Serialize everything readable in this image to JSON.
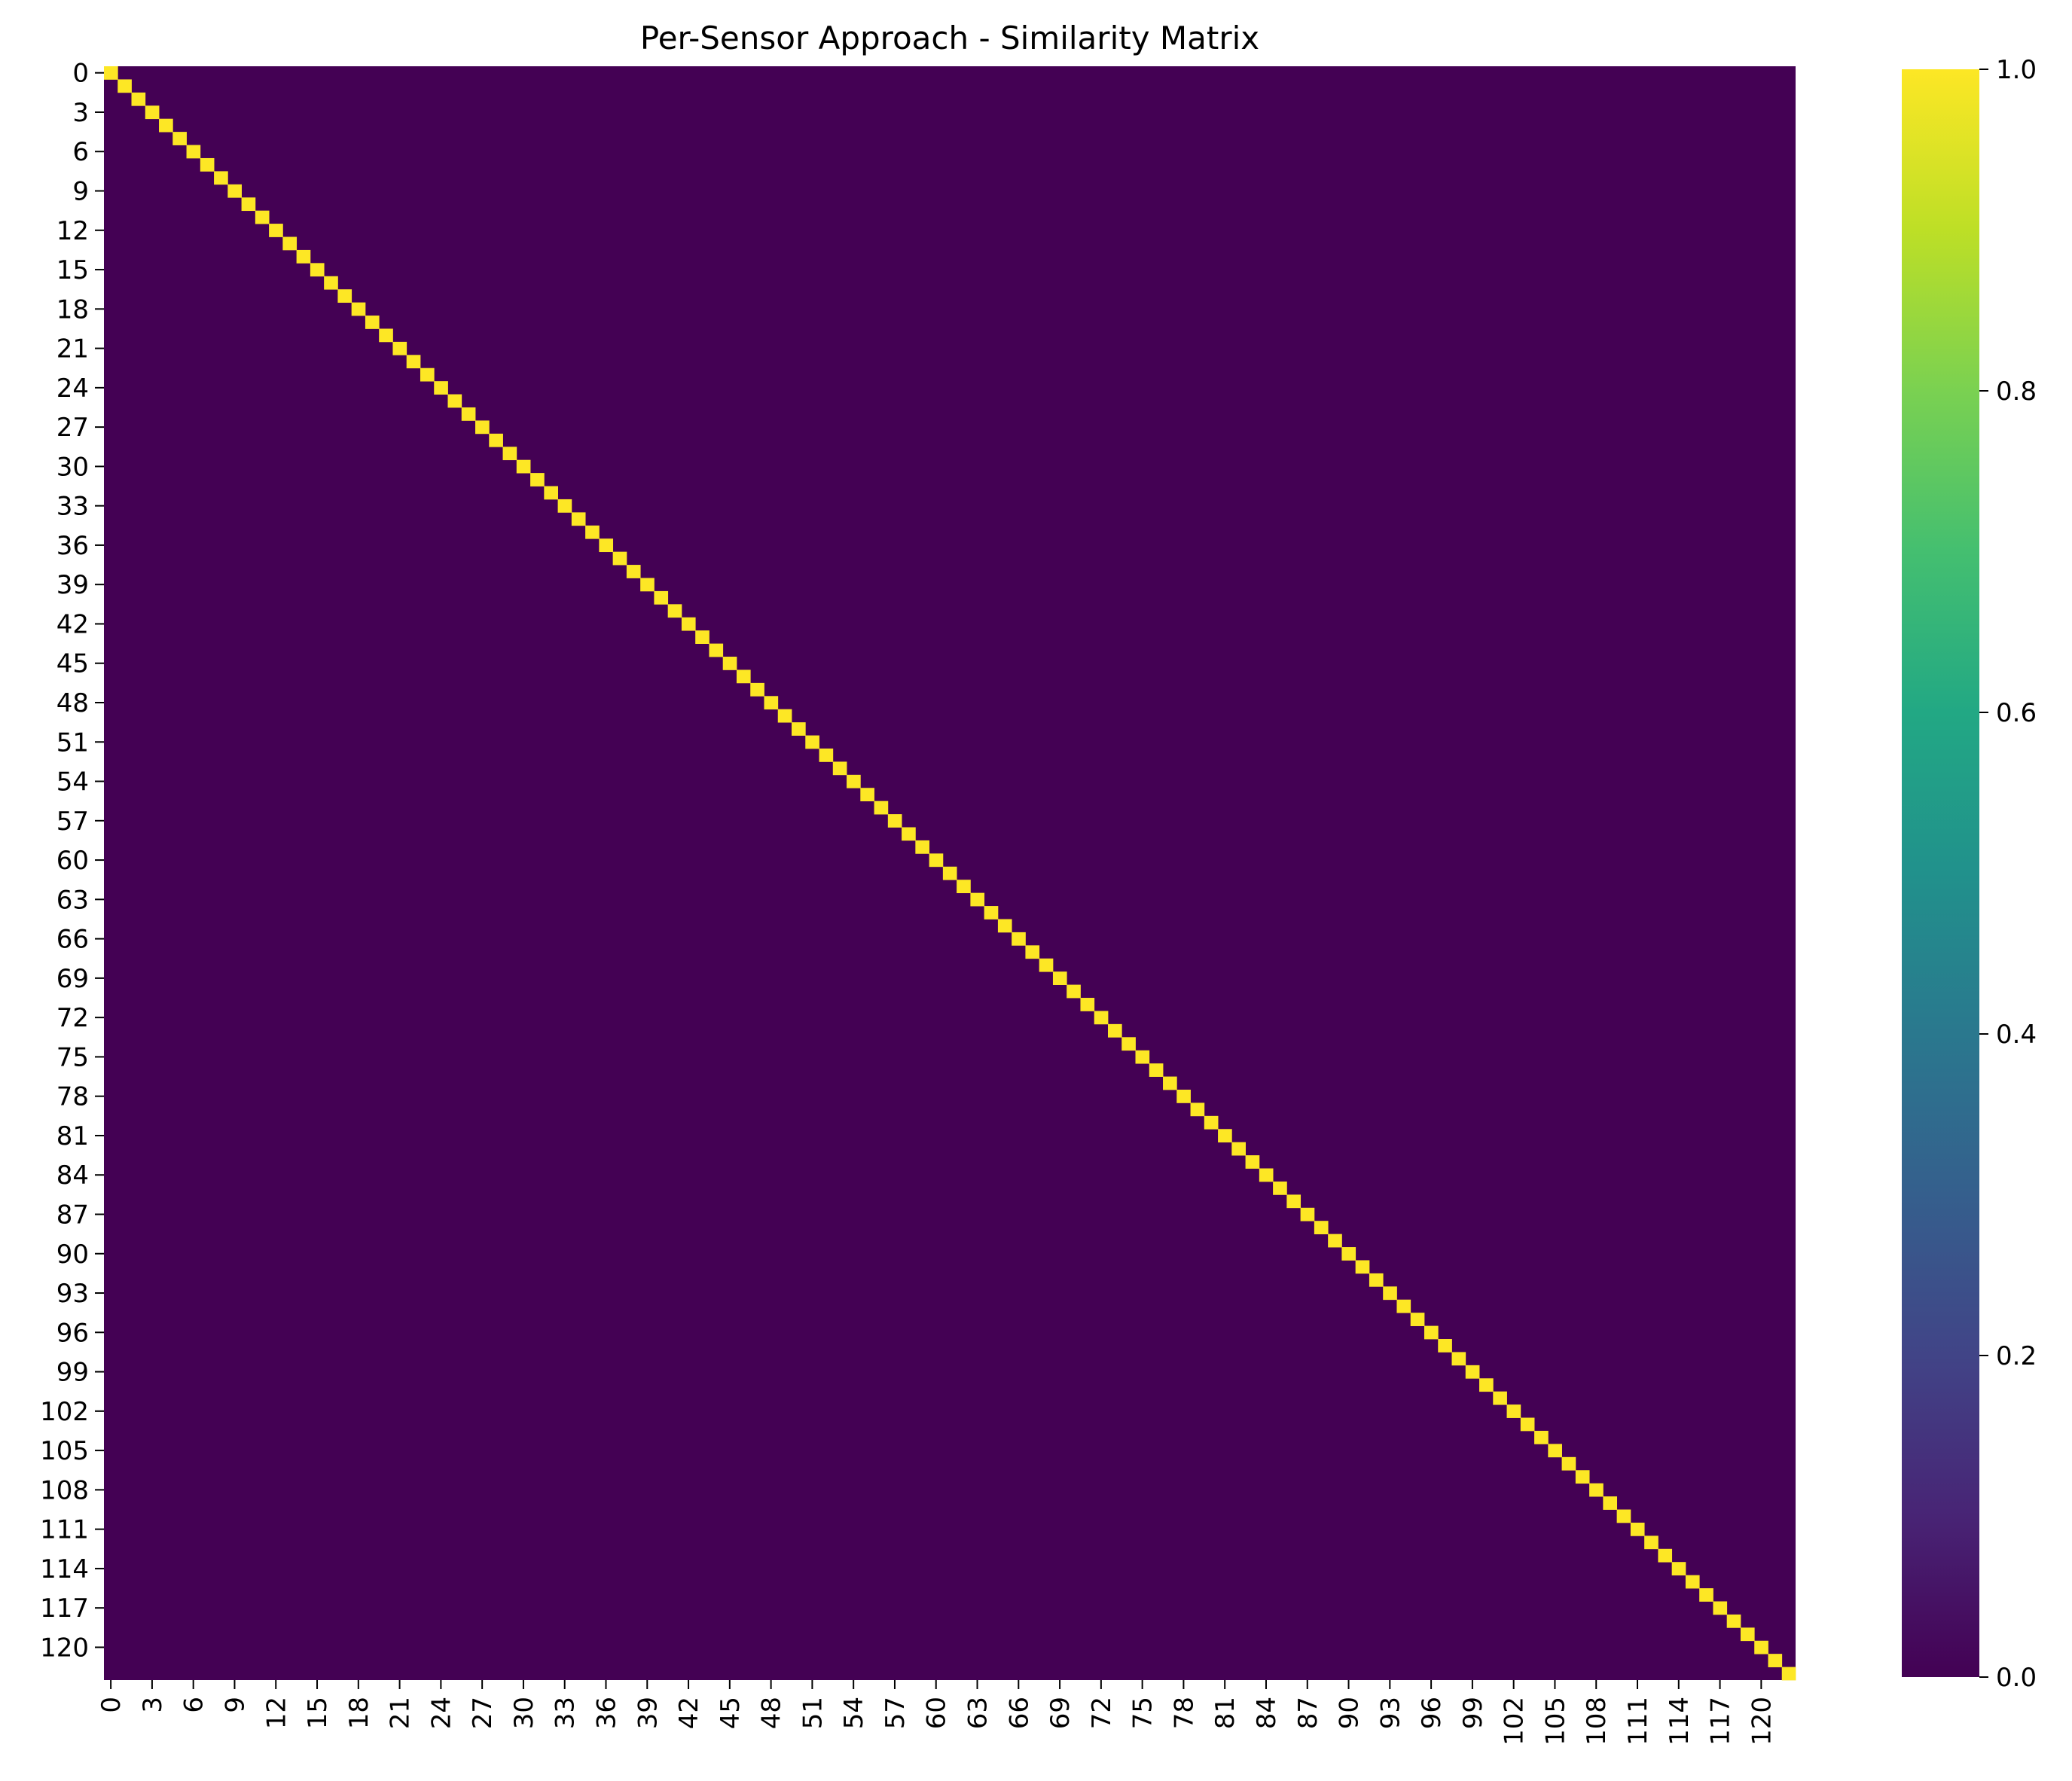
{
  "chart_data": {
    "type": "heatmap",
    "title": "Per-Sensor Approach - Similarity Matrix",
    "xlabel": "",
    "ylabel": "",
    "matrix_size": 123,
    "values_rule": "identity: 1.0 on the diagonal, 0.0 elsewhere",
    "diagonal_value": 1.0,
    "off_diagonal_value": 0.0,
    "x_ticks": [
      "0",
      "3",
      "6",
      "9",
      "12",
      "15",
      "18",
      "21",
      "24",
      "27",
      "30",
      "33",
      "36",
      "39",
      "42",
      "45",
      "48",
      "51",
      "54",
      "57",
      "60",
      "63",
      "66",
      "69",
      "72",
      "75",
      "78",
      "81",
      "84",
      "87",
      "90",
      "93",
      "96",
      "99",
      "102",
      "105",
      "108",
      "111",
      "114",
      "117",
      "120"
    ],
    "y_ticks": [
      "0",
      "3",
      "6",
      "9",
      "12",
      "15",
      "18",
      "21",
      "24",
      "27",
      "30",
      "33",
      "36",
      "39",
      "42",
      "45",
      "48",
      "51",
      "54",
      "57",
      "60",
      "63",
      "66",
      "69",
      "72",
      "75",
      "78",
      "81",
      "84",
      "87",
      "90",
      "93",
      "96",
      "99",
      "102",
      "105",
      "108",
      "111",
      "114",
      "117",
      "120"
    ],
    "colorbar": {
      "colormap": "viridis",
      "vmin": 0.0,
      "vmax": 1.0,
      "ticks": [
        "0.0",
        "0.2",
        "0.4",
        "0.6",
        "0.8",
        "1.0"
      ],
      "low_color": "#440154",
      "high_color": "#fde725"
    },
    "grid": false,
    "legend": "colorbar-right"
  }
}
